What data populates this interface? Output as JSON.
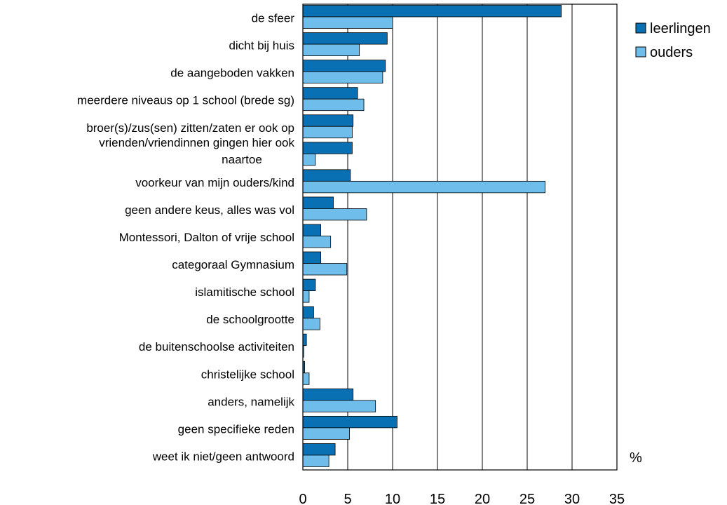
{
  "chart_data": {
    "type": "bar",
    "orientation": "horizontal",
    "unit": "%",
    "xlim": [
      0,
      35
    ],
    "ticks": [
      0,
      5,
      10,
      15,
      20,
      25,
      30,
      35
    ],
    "grid": true,
    "legend_position": "top-right",
    "categories": [
      [
        "de sfeer"
      ],
      [
        "dicht bij huis"
      ],
      [
        "de aangeboden vakken"
      ],
      [
        "meerdere niveaus op 1 school (brede sg)"
      ],
      [
        "broer(s)/zus(sen) zitten/zaten er ook op"
      ],
      [
        "vrienden/vriendinnen gingen hier ook",
        "naartoe"
      ],
      [
        "voorkeur van mijn ouders/kind"
      ],
      [
        "geen andere keus, alles was vol"
      ],
      [
        "Montessori, Dalton of vrije school"
      ],
      [
        "categoraal Gymnasium"
      ],
      [
        "islamitische school"
      ],
      [
        "de schoolgrootte"
      ],
      [
        "de buitenschoolse activiteiten"
      ],
      [
        "christelijke school"
      ],
      [
        "anders, namelijk"
      ],
      [
        "geen specifieke reden"
      ],
      [
        "weet ik niet/geen antwoord"
      ]
    ],
    "series": [
      {
        "name": "leerlingen",
        "color": "#0a70b4",
        "values": [
          28.8,
          9.4,
          9.2,
          6.1,
          5.6,
          5.5,
          5.3,
          3.4,
          2.0,
          2.0,
          1.4,
          1.2,
          0.4,
          0.2,
          5.6,
          10.5,
          3.6
        ]
      },
      {
        "name": "ouders",
        "color": "#6ebdeb",
        "values": [
          10.0,
          6.3,
          8.9,
          6.8,
          5.5,
          1.4,
          27.0,
          7.1,
          3.1,
          4.9,
          0.7,
          1.9,
          0.1,
          0.7,
          8.1,
          5.2,
          2.9
        ]
      }
    ]
  }
}
